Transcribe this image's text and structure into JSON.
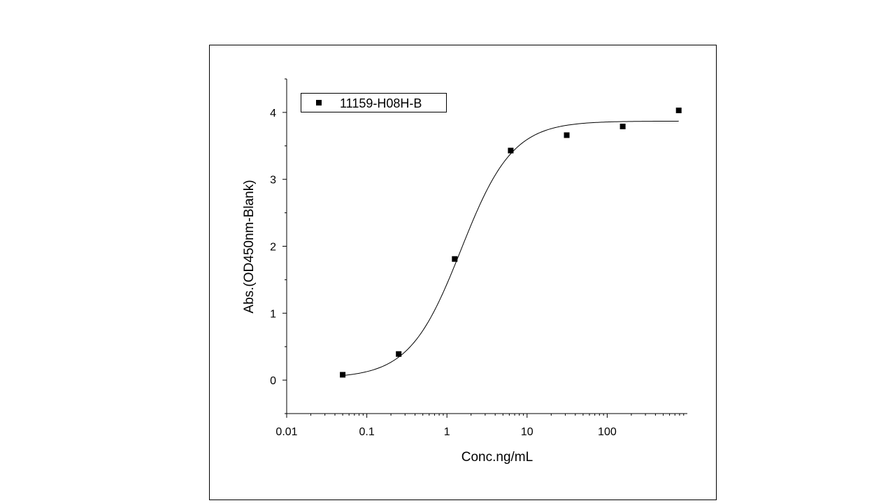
{
  "chart_data": {
    "type": "scatter",
    "xlabel": "Conc.ng/mL",
    "ylabel": "Abs.(OD450nm-Blank)",
    "xscale": "log",
    "xlim": [
      0.01,
      1000
    ],
    "ylim": [
      -0.5,
      4.5
    ],
    "x_ticks": [
      0.01,
      0.1,
      1,
      10,
      100
    ],
    "x_tick_labels": [
      "0.01",
      "0.1",
      "1",
      "10",
      "100"
    ],
    "y_ticks": [
      0,
      1,
      2,
      3,
      4
    ],
    "y_tick_labels": [
      "0",
      "1",
      "2",
      "3",
      "4"
    ],
    "legend_position": "top-left",
    "series": [
      {
        "name": "11159-H08H-B",
        "marker": "square",
        "color": "#000000",
        "x": [
          0.05,
          0.25,
          1.25,
          6.25,
          31.25,
          156.25,
          781.25
        ],
        "y": [
          0.08,
          0.39,
          1.81,
          3.43,
          3.66,
          3.79,
          4.03
        ]
      }
    ],
    "fit_curve": {
      "model": "4PL",
      "bottom": 0.03,
      "top": 3.87,
      "ec50": 1.5,
      "hill": 1.35,
      "x_range": [
        0.05,
        781.25
      ],
      "color": "#000000"
    }
  }
}
